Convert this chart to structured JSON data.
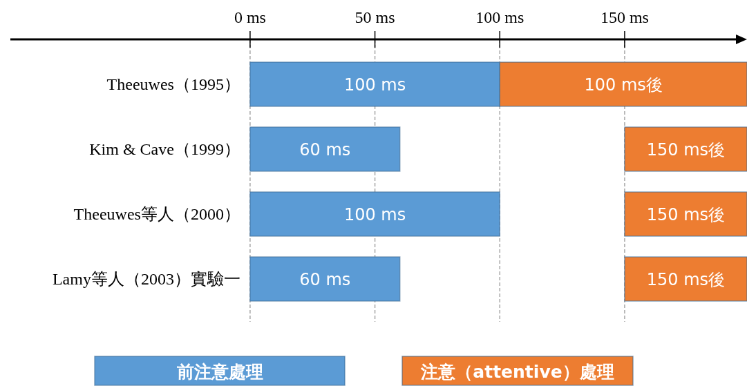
{
  "chart_data": {
    "type": "bar",
    "orientation": "horizontal",
    "categories": [
      "Theeuwes（1995）",
      "Kim & Cave（1999）",
      "Theeuwes等人（2000）",
      "Lamy等人（2003）實驗一"
    ],
    "series": [
      {
        "name": "前注意處理",
        "color": "#5b9bd5",
        "base": [
          0,
          0,
          0,
          0
        ],
        "values": [
          100,
          60,
          100,
          60
        ],
        "value_labels": [
          "100 ms",
          "60 ms",
          "100 ms",
          "60 ms"
        ]
      },
      {
        "name": "注意（attentive）處理",
        "color": "#ed7d31",
        "base": [
          100,
          150,
          150,
          150
        ],
        "values": [
          99,
          49,
          49,
          49
        ]
      }
    ],
    "annotations": [
      "100 ms後",
      "150 ms後",
      "150 ms後",
      "150 ms後"
    ],
    "xlim": [
      -96,
      199
    ],
    "xticks": [
      {
        "value": 0,
        "label": "0 ms"
      },
      {
        "value": 50,
        "label": "50 ms"
      },
      {
        "value": 100,
        "label": "100 ms"
      },
      {
        "value": 150,
        "label": "150 ms"
      }
    ],
    "grid": "x",
    "legend": "bottom"
  }
}
